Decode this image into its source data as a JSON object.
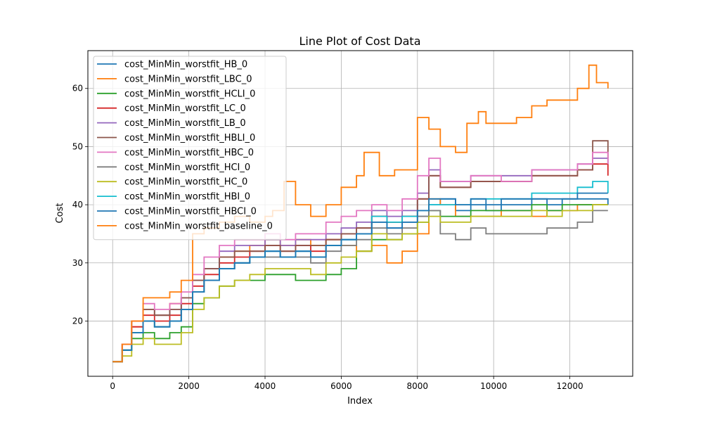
{
  "chart_data": {
    "type": "line",
    "title": "Line Plot of Cost Data",
    "xlabel": "Index",
    "ylabel": "Cost",
    "xlim": [
      -650,
      13650
    ],
    "ylim": [
      10.5,
      66.5
    ],
    "xticks": [
      0,
      2000,
      4000,
      6000,
      8000,
      10000,
      12000
    ],
    "yticks": [
      20,
      30,
      40,
      50,
      60
    ],
    "grid": true,
    "legend_position": "upper-left",
    "series": [
      {
        "name": "cost_MinMin_worstfit_HB_0",
        "color": "#1f77b4",
        "x": [
          0,
          250,
          500,
          800,
          1100,
          1500,
          1800,
          2100,
          2400,
          2800,
          3200,
          3600,
          4000,
          4400,
          4800,
          5200,
          5600,
          6000,
          6400,
          6800,
          7200,
          7600,
          8000,
          8300,
          8600,
          9000,
          9400,
          9800,
          10200,
          10600,
          11000,
          11400,
          11800,
          12200,
          12600,
          13000
        ],
        "y": [
          13,
          15,
          18,
          20,
          19,
          20,
          22,
          25,
          27,
          29,
          30,
          31,
          32,
          31,
          32,
          31,
          33,
          34,
          35,
          37,
          36,
          37,
          38,
          40,
          41,
          39,
          40,
          39,
          40,
          40,
          41,
          40,
          41,
          41,
          41,
          40
        ]
      },
      {
        "name": "cost_MinMin_worstfit_LBC_0",
        "color": "#ff7f0e",
        "x": [
          0,
          250,
          500,
          800,
          1100,
          1500,
          1800,
          2100,
          2400,
          2800,
          3200,
          3600,
          4000,
          4400,
          4800,
          5200,
          5600,
          6000,
          6400,
          6800,
          7200,
          7600,
          8000,
          8300,
          8600,
          9000,
          9400,
          9800,
          10200,
          10600,
          11000,
          11400,
          11800,
          12200,
          12600,
          13000
        ],
        "y": [
          13,
          16,
          19,
          22,
          21,
          23,
          24,
          27,
          29,
          31,
          32,
          33,
          34,
          33,
          34,
          33,
          34,
          33,
          32,
          33,
          30,
          32,
          35,
          41,
          40,
          38,
          38,
          38,
          39,
          39,
          38,
          39,
          39,
          40,
          40,
          40
        ]
      },
      {
        "name": "cost_MinMin_worstfit_HCLI_0",
        "color": "#2ca02c",
        "x": [
          0,
          250,
          500,
          800,
          1100,
          1500,
          1800,
          2100,
          2400,
          2800,
          3200,
          3600,
          4000,
          4400,
          4800,
          5200,
          5600,
          6000,
          6400,
          6800,
          7200,
          7600,
          8000,
          8300,
          8600,
          9000,
          9400,
          9800,
          10200,
          10600,
          11000,
          11400,
          11800,
          12200,
          12600,
          13000
        ],
        "y": [
          13,
          15,
          17,
          18,
          17,
          18,
          19,
          23,
          24,
          26,
          27,
          27,
          28,
          28,
          27,
          27,
          28,
          29,
          32,
          34,
          34,
          35,
          37,
          39,
          38,
          38,
          39,
          39,
          39,
          39,
          40,
          39,
          40,
          40,
          40,
          40
        ]
      },
      {
        "name": "cost_MinMin_worstfit_LC_0",
        "color": "#d62728",
        "x": [
          0,
          250,
          500,
          800,
          1100,
          1500,
          1800,
          2100,
          2400,
          2800,
          3200,
          3600,
          4000,
          4400,
          4800,
          5200,
          5600,
          6000,
          6400,
          6800,
          7200,
          7600,
          8000,
          8300,
          8600,
          9000,
          9400,
          9800,
          10200,
          10600,
          11000,
          11400,
          11800,
          12200,
          12600,
          13000
        ],
        "y": [
          13,
          16,
          19,
          21,
          20,
          21,
          23,
          26,
          28,
          30,
          31,
          32,
          33,
          32,
          33,
          32,
          34,
          35,
          36,
          38,
          37,
          38,
          41,
          45,
          43,
          43,
          44,
          44,
          44,
          44,
          45,
          45,
          45,
          46,
          47,
          45
        ]
      },
      {
        "name": "cost_MinMin_worstfit_LB_0",
        "color": "#9467bd",
        "x": [
          0,
          250,
          500,
          800,
          1100,
          1500,
          1800,
          2100,
          2400,
          2800,
          3200,
          3600,
          4000,
          4400,
          4800,
          5200,
          5600,
          6000,
          6400,
          6800,
          7200,
          7600,
          8000,
          8300,
          8600,
          9000,
          9400,
          9800,
          10200,
          10600,
          11000,
          11400,
          11800,
          12200,
          12600,
          13000
        ],
        "y": [
          13,
          16,
          20,
          22,
          21,
          22,
          24,
          27,
          29,
          32,
          33,
          33,
          34,
          33,
          34,
          34,
          35,
          36,
          37,
          39,
          38,
          39,
          42,
          46,
          44,
          44,
          45,
          45,
          45,
          45,
          46,
          46,
          46,
          47,
          48,
          47
        ]
      },
      {
        "name": "cost_MinMin_worstfit_HBLI_0",
        "color": "#8c564b",
        "x": [
          0,
          250,
          500,
          800,
          1100,
          1500,
          1800,
          2100,
          2400,
          2800,
          3200,
          3600,
          4000,
          4400,
          4800,
          5200,
          5600,
          6000,
          6400,
          6800,
          7200,
          7600,
          8000,
          8300,
          8600,
          9000,
          9400,
          9800,
          10200,
          10600,
          11000,
          11400,
          11800,
          12200,
          12600,
          13000
        ],
        "y": [
          13,
          16,
          20,
          22,
          21,
          22,
          24,
          27,
          29,
          31,
          32,
          32,
          33,
          32,
          33,
          33,
          34,
          35,
          36,
          38,
          37,
          38,
          41,
          45,
          43,
          43,
          44,
          44,
          44,
          44,
          45,
          45,
          45,
          46,
          51,
          48
        ]
      },
      {
        "name": "cost_MinMin_worstfit_HBC_0",
        "color": "#e377c2",
        "x": [
          0,
          250,
          500,
          800,
          1100,
          1500,
          1800,
          2100,
          2400,
          2800,
          3200,
          3600,
          4000,
          4400,
          4800,
          5200,
          5600,
          6000,
          6400,
          6800,
          7200,
          7600,
          8000,
          8300,
          8600,
          9000,
          9400,
          9800,
          10200,
          10600,
          11000,
          11400,
          11800,
          12200,
          12600,
          13000
        ],
        "y": [
          13,
          16,
          20,
          23,
          22,
          23,
          25,
          28,
          31,
          33,
          34,
          34,
          35,
          34,
          35,
          35,
          37,
          38,
          39,
          40,
          39,
          41,
          45,
          48,
          44,
          44,
          45,
          45,
          44,
          44,
          46,
          46,
          46,
          47,
          49,
          47
        ]
      },
      {
        "name": "cost_MinMin_worstfit_HCI_0",
        "color": "#7f7f7f",
        "x": [
          0,
          250,
          500,
          800,
          1100,
          1500,
          1800,
          2100,
          2400,
          2800,
          3200,
          3600,
          4000,
          4400,
          4800,
          5200,
          5600,
          6000,
          6400,
          6800,
          7200,
          7600,
          8000,
          8300,
          8600,
          9000,
          9400,
          9800,
          10200,
          10600,
          11000,
          11400,
          11800,
          12200,
          12600,
          13000
        ],
        "y": [
          13,
          15,
          18,
          20,
          19,
          20,
          22,
          25,
          27,
          29,
          30,
          31,
          31,
          31,
          31,
          30,
          32,
          33,
          34,
          36,
          35,
          36,
          38,
          39,
          35,
          34,
          36,
          35,
          35,
          35,
          35,
          36,
          36,
          37,
          39,
          39
        ]
      },
      {
        "name": "cost_MinMin_worstfit_HC_0",
        "color": "#bcbd22",
        "x": [
          0,
          250,
          500,
          800,
          1100,
          1500,
          1800,
          2100,
          2400,
          2800,
          3200,
          3600,
          4000,
          4400,
          4800,
          5200,
          5600,
          6000,
          6400,
          6800,
          7200,
          7600,
          8000,
          8300,
          8600,
          9000,
          9400,
          9800,
          10200,
          10600,
          11000,
          11400,
          11800,
          12200,
          12600,
          13000
        ],
        "y": [
          13,
          14,
          16,
          17,
          16,
          16,
          18,
          22,
          24,
          26,
          27,
          28,
          29,
          29,
          29,
          28,
          30,
          31,
          32,
          35,
          34,
          35,
          37,
          38,
          37,
          37,
          38,
          38,
          38,
          38,
          39,
          38,
          39,
          39,
          40,
          40
        ]
      },
      {
        "name": "cost_MinMin_worstfit_HBI_0",
        "color": "#17becf",
        "x": [
          0,
          250,
          500,
          800,
          1100,
          1500,
          1800,
          2100,
          2400,
          2800,
          3200,
          3600,
          4000,
          4400,
          4800,
          5200,
          5600,
          6000,
          6400,
          6800,
          7200,
          7600,
          8000,
          8300,
          8600,
          9000,
          9400,
          9800,
          10200,
          10600,
          11000,
          11400,
          11800,
          12200,
          12600,
          13000
        ],
        "y": [
          13,
          15,
          18,
          20,
          19,
          20,
          22,
          25,
          27,
          29,
          30,
          31,
          32,
          31,
          32,
          31,
          33,
          34,
          35,
          38,
          37,
          38,
          39,
          40,
          40,
          40,
          41,
          41,
          41,
          41,
          42,
          42,
          42,
          43,
          44,
          42
        ]
      },
      {
        "name": "cost_MinMin_worstfit_HBCI_0",
        "color": "#1f77b4",
        "x": [
          0,
          250,
          500,
          800,
          1100,
          1500,
          1800,
          2100,
          2400,
          2800,
          3200,
          3600,
          4000,
          4400,
          4800,
          5200,
          5600,
          6000,
          6400,
          6800,
          7200,
          7600,
          8000,
          8300,
          8600,
          9000,
          9400,
          9800,
          10200,
          10600,
          11000,
          11400,
          11800,
          12200,
          12600,
          13000
        ],
        "y": [
          13,
          15,
          18,
          20,
          19,
          20,
          22,
          25,
          27,
          29,
          30,
          31,
          32,
          31,
          32,
          31,
          33,
          34,
          35,
          37,
          36,
          37,
          39,
          41,
          41,
          40,
          41,
          40,
          41,
          41,
          41,
          41,
          41,
          42,
          42,
          42
        ]
      },
      {
        "name": "cost_MinMin_worstfit_baseline_0",
        "color": "#ff7f0e",
        "x": [
          0,
          250,
          500,
          800,
          1100,
          1500,
          1800,
          2100,
          2400,
          2800,
          3200,
          3600,
          4000,
          4200,
          4500,
          4800,
          5200,
          5600,
          6000,
          6400,
          6600,
          7000,
          7400,
          7800,
          8000,
          8300,
          8600,
          9000,
          9300,
          9600,
          9800,
          10200,
          10600,
          11000,
          11400,
          11800,
          12200,
          12500,
          12700,
          13000
        ],
        "y": [
          13,
          16,
          20,
          24,
          24,
          25,
          27,
          35,
          36,
          37,
          38,
          37,
          38,
          39,
          44,
          40,
          38,
          40,
          43,
          45,
          49,
          45,
          46,
          46,
          55,
          53,
          50,
          49,
          54,
          56,
          54,
          54,
          55,
          57,
          58,
          58,
          60,
          64,
          61,
          60
        ]
      }
    ]
  }
}
